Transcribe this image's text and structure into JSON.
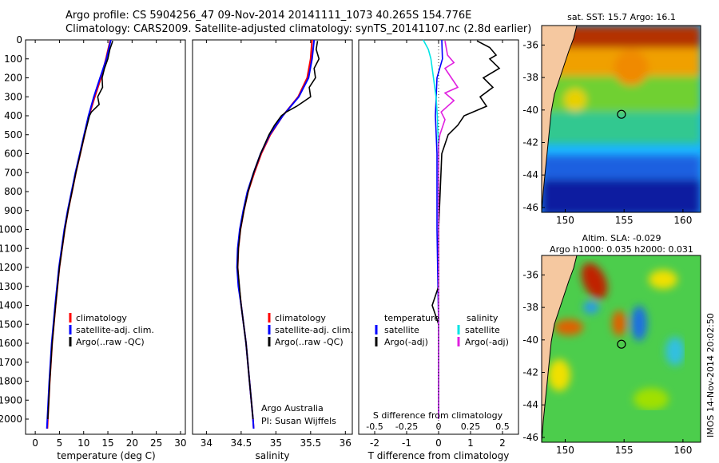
{
  "header": {
    "line1": "Argo profile: CS 5904256_47 09-Nov-2014 20141111_1073 40.265S 154.776E",
    "line2": "Climatology: CARS2009. Satellite-adjusted climatology: synTS_20141107.nc (2.8d earlier)"
  },
  "credit": {
    "line1": "Argo Australia",
    "line2": "PI: Susan Wijffels"
  },
  "footer_stamp": "IMOS 14-Nov-2014 20:02:50",
  "colors": {
    "clim": "#ff0000",
    "sat": "#0000ff",
    "argo": "#000000",
    "sal_sat": "#00e5e5",
    "sal_argo": "#e020e0",
    "land": "#f5c8a0"
  },
  "chart_data": [
    {
      "type": "line",
      "title": "",
      "xlabel": "temperature (deg C)",
      "ylabel": "",
      "xlim": [
        -2,
        31
      ],
      "ylim": [
        2080,
        0
      ],
      "xticks": [
        "0",
        "5",
        "10",
        "15",
        "20",
        "25",
        "30"
      ],
      "xtick_values": [
        0,
        5,
        10,
        15,
        20,
        25,
        30
      ],
      "yticks": [
        "0",
        "100",
        "200",
        "300",
        "400",
        "500",
        "600",
        "700",
        "800",
        "900",
        "1000",
        "1100",
        "1200",
        "1300",
        "1400",
        "1500",
        "1600",
        "1700",
        "1800",
        "1900",
        "2000"
      ],
      "ytick_values": [
        0,
        100,
        200,
        300,
        400,
        500,
        600,
        700,
        800,
        900,
        1000,
        1100,
        1200,
        1300,
        1400,
        1500,
        1600,
        1700,
        1800,
        1900,
        2000
      ],
      "legend": [
        "climatology",
        "satellite-adj. clim.",
        "Argo(..raw -QC)"
      ],
      "series": [
        {
          "name": "climatology",
          "depth": [
            0,
            100,
            200,
            300,
            400,
            500,
            600,
            700,
            800,
            900,
            1000,
            1200,
            1400,
            1600,
            1800,
            2000,
            2050
          ],
          "values": [
            15.5,
            14.6,
            13.6,
            12.3,
            11.1,
            10.2,
            9.3,
            8.4,
            7.6,
            6.8,
            6.1,
            5.0,
            4.2,
            3.5,
            3.0,
            2.6,
            2.5
          ]
        },
        {
          "name": "satellite-adj. clim.",
          "depth": [
            0,
            100,
            200,
            300,
            400,
            500,
            600,
            700,
            800,
            900,
            1000,
            1200,
            1400,
            1600,
            1800,
            2000,
            2050
          ],
          "values": [
            15.6,
            14.7,
            13.4,
            12.1,
            11.0,
            10.1,
            9.2,
            8.3,
            7.5,
            6.7,
            6.0,
            4.9,
            4.1,
            3.4,
            2.9,
            2.5,
            2.4
          ]
        },
        {
          "name": "Argo(..raw -QC)",
          "depth": [
            5,
            50,
            100,
            150,
            200,
            250,
            300,
            340,
            380,
            400,
            450,
            500,
            600,
            700,
            800,
            900,
            1000,
            1200,
            1400,
            1600,
            1800,
            2000
          ],
          "values": [
            16.0,
            15.4,
            15.0,
            14.3,
            13.8,
            13.9,
            12.9,
            13.2,
            11.6,
            11.2,
            10.7,
            10.2,
            9.3,
            8.4,
            7.6,
            6.8,
            6.1,
            5.0,
            4.2,
            3.5,
            3.0,
            2.6
          ]
        }
      ]
    },
    {
      "type": "line",
      "title": "",
      "xlabel": "salinity",
      "ylabel": "",
      "xlim": [
        33.8,
        36.1
      ],
      "ylim": [
        2080,
        0
      ],
      "xticks": [
        "34",
        "34.5",
        "35",
        "35.5",
        "36"
      ],
      "xtick_values": [
        34,
        34.5,
        35,
        35.5,
        36
      ],
      "legend": [
        "climatology",
        "satellite-adj. clim.",
        "Argo(..raw -QC)"
      ],
      "series": [
        {
          "name": "climatology",
          "depth": [
            0,
            100,
            200,
            300,
            400,
            500,
            600,
            700,
            800,
            900,
            1000,
            1100,
            1200,
            1300,
            1400,
            1600,
            1800,
            2000,
            2050
          ],
          "values": [
            35.52,
            35.5,
            35.45,
            35.32,
            35.1,
            34.92,
            34.79,
            34.69,
            34.6,
            34.54,
            34.49,
            34.46,
            34.45,
            34.47,
            34.5,
            34.57,
            34.62,
            34.67,
            34.68
          ]
        },
        {
          "name": "satellite-adj. clim.",
          "depth": [
            0,
            100,
            200,
            300,
            400,
            500,
            600,
            700,
            800,
            900,
            1000,
            1100,
            1200,
            1300,
            1400,
            1600,
            1800,
            2000,
            2050
          ],
          "values": [
            35.55,
            35.52,
            35.47,
            35.33,
            35.1,
            34.91,
            34.78,
            34.68,
            34.59,
            34.53,
            34.48,
            34.45,
            34.44,
            34.46,
            34.5,
            34.57,
            34.62,
            34.67,
            34.68
          ]
        },
        {
          "name": "Argo(..raw -QC)",
          "depth": [
            5,
            50,
            100,
            150,
            200,
            250,
            300,
            350,
            380,
            400,
            450,
            500,
            600,
            700,
            800,
            900,
            1000,
            1100,
            1200,
            1400,
            1600,
            1800,
            2000
          ],
          "values": [
            35.6,
            35.58,
            35.62,
            35.55,
            35.57,
            35.48,
            35.5,
            35.3,
            35.15,
            35.08,
            34.98,
            34.9,
            34.78,
            34.68,
            34.6,
            34.54,
            34.49,
            34.46,
            34.45,
            34.5,
            34.57,
            34.62,
            34.67
          ]
        }
      ]
    },
    {
      "type": "line",
      "title": "",
      "xlabel": "T difference from climatology",
      "xlabel_top": "S difference from climatology",
      "xlim": [
        -2.5,
        2.5
      ],
      "ylim": [
        2080,
        0
      ],
      "xticks": [
        "-2",
        "-1",
        "0",
        "1",
        "2"
      ],
      "xtick_values": [
        -2,
        -1,
        0,
        1,
        2
      ],
      "xticks_top": [
        "-0.5",
        "-0.25",
        "0",
        "0.25",
        "0.5"
      ],
      "xtick_values_top": [
        -0.5,
        -0.25,
        0,
        0.25,
        0.5
      ],
      "legend_left_title": "temperature",
      "legend_right_title": "salinity",
      "legend": [
        "satellite",
        "Argo(-adj)",
        "satellite",
        "Argo(-adj)"
      ],
      "series": [
        {
          "name": "temperature satellite",
          "depth": [
            0,
            100,
            200,
            400,
            600,
            800,
            1000,
            1500,
            2000
          ],
          "values": [
            0.1,
            0.12,
            -0.05,
            -0.1,
            -0.05,
            -0.05,
            -0.05,
            0,
            0
          ]
        },
        {
          "name": "temperature Argo(-adj)",
          "depth": [
            5,
            40,
            80,
            100,
            150,
            200,
            250,
            300,
            350,
            400,
            450,
            500,
            600,
            800,
            1000,
            1300,
            1400,
            1500,
            2000
          ],
          "values": [
            1.2,
            1.6,
            1.8,
            1.6,
            1.9,
            1.4,
            1.7,
            1.3,
            1.5,
            0.8,
            0.6,
            0.3,
            0.1,
            0.05,
            0,
            0,
            -0.2,
            0,
            0
          ]
        },
        {
          "name": "salinity satellite",
          "depth": [
            0,
            50,
            100,
            200,
            300,
            400,
            600,
            800,
            1000,
            1500,
            2000
          ],
          "values": [
            -0.12,
            -0.08,
            -0.06,
            -0.04,
            -0.02,
            -0.01,
            0,
            0,
            0,
            0,
            0
          ]
        },
        {
          "name": "salinity Argo(-adj)",
          "depth": [
            5,
            80,
            120,
            150,
            200,
            250,
            280,
            320,
            380,
            420,
            500,
            550,
            1000,
            2000
          ],
          "values": [
            0.05,
            0.07,
            0.12,
            0.05,
            0.1,
            0.15,
            0.05,
            0.12,
            0.02,
            0.05,
            0.01,
            0,
            0,
            0
          ]
        }
      ]
    },
    {
      "type": "heatmap",
      "title": "sat. SST: 15.7  Argo: 16.1",
      "xlim": [
        148,
        161.5
      ],
      "ylim": [
        -46.3,
        -34.8
      ],
      "xticks": [
        "150",
        "155",
        "160"
      ],
      "xtick_values": [
        150,
        155,
        160
      ],
      "yticks": [
        "-36",
        "-38",
        "-40",
        "-42",
        "-44",
        "-46"
      ],
      "ytick_values": [
        -36,
        -38,
        -40,
        -42,
        -44,
        -46
      ],
      "marker": {
        "lon": 154.776,
        "lat": -40.265
      }
    },
    {
      "type": "heatmap",
      "title_line1": "Altim. SLA: -0.029",
      "title_line2": "Argo h1000: 0.035 h2000: 0.031",
      "xlim": [
        148,
        161.5
      ],
      "ylim": [
        -46.3,
        -34.8
      ],
      "xticks": [
        "150",
        "155",
        "160"
      ],
      "xtick_values": [
        150,
        155,
        160
      ],
      "yticks": [
        "-36",
        "-38",
        "-40",
        "-42",
        "-44",
        "-46"
      ],
      "ytick_values": [
        -36,
        -38,
        -40,
        -42,
        -44,
        -46
      ],
      "marker": {
        "lon": 154.776,
        "lat": -40.265
      }
    }
  ]
}
